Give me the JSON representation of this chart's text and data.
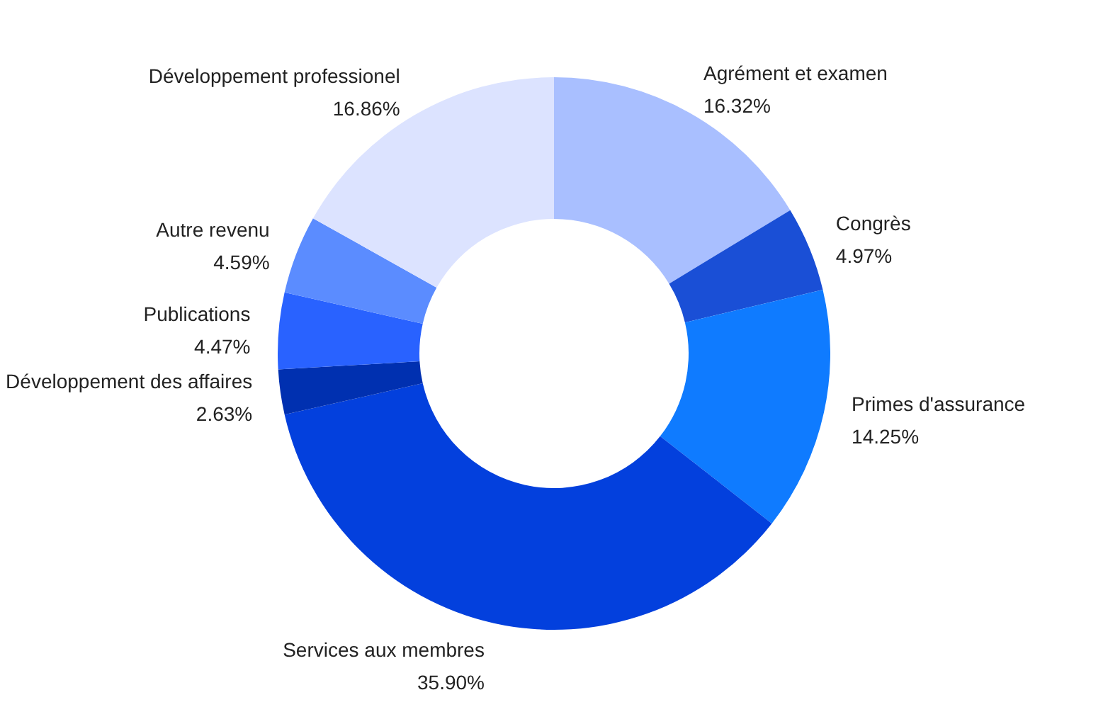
{
  "chart_data": {
    "type": "donut",
    "categories": [
      "Agrément et examen",
      "Congrès",
      "Primes d'assurance",
      "Services aux membres",
      "Développement des affaires",
      "Publications",
      "Autre revenu",
      "Développement professionel"
    ],
    "values": [
      16.32,
      4.97,
      14.25,
      35.9,
      2.63,
      4.47,
      4.59,
      16.86
    ],
    "colors": [
      "#a9bfff",
      "#1a4fd6",
      "#0f7bff",
      "#0340dd",
      "#0030b0",
      "#2962ff",
      "#5b8cff",
      "#dce3ff"
    ],
    "value_labels": [
      "16.32%",
      "4.97%",
      "14.25%",
      "35.90%",
      "2.63%",
      "4.47%",
      "4.59%",
      "16.86%"
    ]
  }
}
